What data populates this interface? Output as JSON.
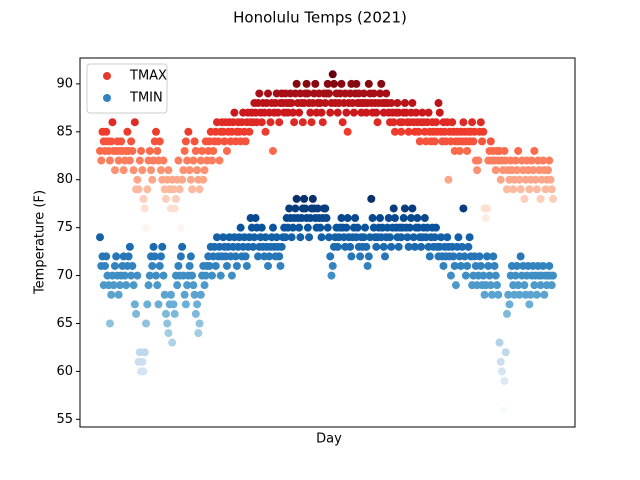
{
  "chart_data": {
    "type": "scatter",
    "title": "Honolulu Temps (2021)",
    "xlabel": "Day",
    "ylabel": "Temperature (F)",
    "ylim": [
      54.2,
      92.7
    ],
    "yticks": [
      55,
      60,
      65,
      70,
      75,
      80,
      85,
      90
    ],
    "legend": "upper left",
    "series": [
      {
        "name": "TMAX",
        "color": "#e33b2e",
        "cmap": [
          "#fff5f0",
          "#fee0d2",
          "#fcbba1",
          "#fc9272",
          "#fb6a4a",
          "#ef3b2c",
          "#cb181d",
          "#a50f15",
          "#67000d"
        ],
        "values": [
          83,
          82,
          85,
          84,
          83,
          85,
          84,
          83,
          82,
          84,
          86,
          83,
          81,
          83,
          84,
          82,
          83,
          84,
          83,
          81,
          82,
          83,
          85,
          83,
          82,
          84,
          83,
          81,
          86,
          79,
          80,
          79,
          82,
          83,
          81,
          78,
          77,
          75,
          79,
          82,
          83,
          81,
          80,
          82,
          84,
          85,
          83,
          82,
          84,
          81,
          80,
          82,
          79,
          78,
          80,
          81,
          79,
          77,
          80,
          79,
          77,
          78,
          80,
          82,
          79,
          75,
          80,
          81,
          83,
          84,
          82,
          85,
          81,
          80,
          79,
          82,
          84,
          83,
          81,
          80,
          79,
          82,
          83,
          80,
          81,
          84,
          82,
          83,
          84,
          85,
          82,
          83,
          84,
          85,
          86,
          84,
          82,
          85,
          86,
          85,
          84,
          86,
          83,
          85,
          86,
          84,
          85,
          86,
          87,
          84,
          85,
          86,
          85,
          84,
          86,
          87,
          85,
          84,
          86,
          87,
          85,
          86,
          87,
          86,
          88,
          87,
          86,
          88,
          89,
          87,
          86,
          88,
          87,
          85,
          88,
          89,
          87,
          86,
          88,
          83,
          87,
          88,
          89,
          87,
          86,
          88,
          89,
          88,
          87,
          89,
          88,
          87,
          88,
          89,
          88,
          87,
          86,
          89,
          90,
          88,
          87,
          89,
          88,
          86,
          88,
          89,
          90,
          89,
          88,
          87,
          86,
          88,
          89,
          90,
          87,
          88,
          89,
          88,
          87,
          86,
          89,
          88,
          89,
          90,
          89,
          87,
          88,
          91,
          90,
          88,
          89,
          87,
          88,
          89,
          90,
          86,
          88,
          89,
          87,
          85,
          88,
          89,
          90,
          88,
          87,
          89,
          90,
          88,
          89,
          88,
          87,
          88,
          89,
          88,
          87,
          88,
          90,
          89,
          88,
          87,
          89,
          88,
          87,
          86,
          88,
          89,
          90,
          88,
          87,
          88,
          89,
          88,
          87,
          86,
          88,
          87,
          86,
          85,
          87,
          88,
          87,
          86,
          85,
          86,
          87,
          88,
          87,
          86,
          85,
          86,
          87,
          88,
          86,
          85,
          87,
          86,
          85,
          84,
          86,
          87,
          86,
          85,
          84,
          86,
          87,
          85,
          84,
          86,
          85,
          84,
          86,
          85,
          88,
          87,
          85,
          84,
          86,
          85,
          84,
          86,
          80,
          85,
          84,
          86,
          85,
          83,
          84,
          85,
          84,
          83,
          85,
          84,
          86,
          85,
          84,
          83,
          85,
          84,
          85,
          86,
          84,
          85,
          82,
          81,
          82,
          85,
          86,
          84,
          85,
          77,
          76,
          77,
          82,
          83,
          84,
          82,
          83,
          82,
          81,
          83,
          82,
          83,
          80,
          82,
          81,
          83,
          82,
          79,
          81,
          80,
          82,
          81,
          79,
          80,
          82,
          81,
          83,
          80,
          79,
          82,
          81,
          78,
          80,
          82,
          81,
          79,
          80,
          82,
          81,
          83,
          80,
          79,
          82,
          81,
          78,
          80,
          82,
          81,
          79,
          80,
          81,
          82,
          80,
          79,
          78
        ]
      },
      {
        "name": "TMIN",
        "color": "#3383c0",
        "cmap": [
          "#f7fbff",
          "#deebf7",
          "#c6dbef",
          "#9ecae1",
          "#6baed6",
          "#4292c6",
          "#2171b5",
          "#08519c",
          "#08306b"
        ],
        "values": [
          74,
          71,
          72,
          69,
          71,
          72,
          70,
          69,
          65,
          68,
          70,
          69,
          71,
          72,
          70,
          68,
          69,
          70,
          71,
          72,
          70,
          69,
          71,
          72,
          73,
          70,
          71,
          69,
          67,
          66,
          70,
          61,
          62,
          60,
          61,
          60,
          62,
          65,
          67,
          69,
          70,
          72,
          71,
          73,
          72,
          70,
          69,
          67,
          71,
          72,
          73,
          70,
          68,
          66,
          65,
          64,
          67,
          68,
          63,
          67,
          66,
          70,
          69,
          71,
          70,
          72,
          73,
          70,
          68,
          67,
          69,
          70,
          71,
          72,
          70,
          69,
          68,
          66,
          67,
          64,
          65,
          68,
          70,
          71,
          69,
          70,
          71,
          72,
          71,
          73,
          70,
          72,
          73,
          71,
          74,
          72,
          73,
          70,
          72,
          74,
          73,
          72,
          71,
          73,
          74,
          72,
          70,
          73,
          74,
          72,
          71,
          73,
          74,
          75,
          72,
          73,
          74,
          72,
          71,
          73,
          74,
          76,
          75,
          73,
          74,
          76,
          75,
          72,
          73,
          74,
          75,
          73,
          72,
          74,
          73,
          71,
          72,
          73,
          74,
          75,
          73,
          72,
          74,
          73,
          72,
          71,
          73,
          74,
          75,
          74,
          76,
          75,
          77,
          76,
          74,
          75,
          76,
          77,
          78,
          76,
          75,
          74,
          76,
          77,
          78,
          77,
          76,
          75,
          74,
          76,
          77,
          78,
          77,
          76,
          75,
          77,
          76,
          75,
          74,
          76,
          77,
          77,
          76,
          75,
          74,
          72,
          70,
          71,
          73,
          74,
          75,
          73,
          74,
          75,
          76,
          75,
          74,
          73,
          75,
          76,
          74,
          73,
          72,
          74,
          75,
          76,
          74,
          75,
          73,
          72,
          74,
          73,
          74,
          75,
          73,
          71,
          72,
          74,
          78,
          76,
          75,
          74,
          73,
          74,
          75,
          76,
          74,
          75,
          73,
          72,
          74,
          75,
          76,
          74,
          73,
          75,
          77,
          76,
          75,
          74,
          73,
          75,
          74,
          75,
          76,
          77,
          75,
          74,
          73,
          75,
          76,
          77,
          74,
          73,
          75,
          76,
          75,
          74,
          73,
          74,
          75,
          76,
          74,
          75,
          73,
          72,
          74,
          75,
          73,
          74,
          75,
          73,
          72,
          73,
          74,
          72,
          71,
          73,
          72,
          74,
          73,
          72,
          70,
          73,
          72,
          71,
          69,
          73,
          74,
          72,
          71,
          73,
          77,
          72,
          70,
          71,
          73,
          74,
          72,
          69,
          70,
          72,
          71,
          69,
          70,
          72,
          71,
          69,
          70,
          68,
          69,
          72,
          71,
          70,
          69,
          68,
          72,
          71,
          70,
          69,
          68,
          63,
          61,
          60,
          56,
          59,
          62,
          66,
          68,
          67,
          70,
          71,
          69,
          68,
          70,
          71,
          69,
          68,
          72,
          70,
          71,
          69,
          68,
          70,
          71,
          67,
          68,
          70,
          71,
          69,
          70,
          68,
          71,
          70,
          69,
          70,
          71,
          68,
          70,
          69,
          70,
          71,
          70,
          69,
          70
        ]
      }
    ]
  }
}
